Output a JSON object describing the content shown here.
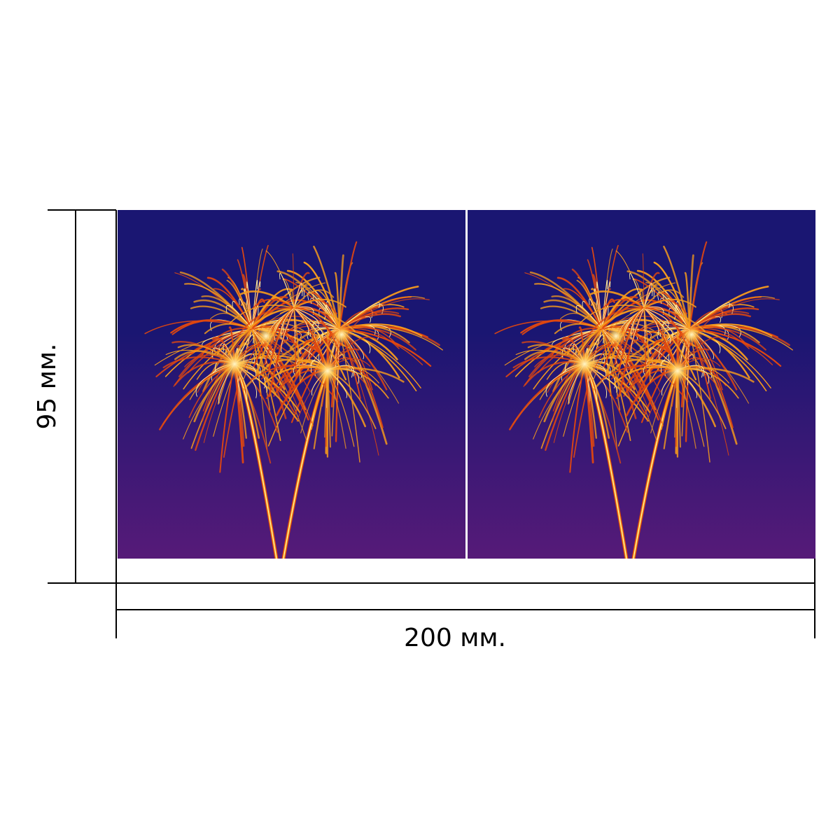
{
  "dimensions": {
    "width_label": "200 мм.",
    "height_label": "95 мм."
  },
  "panels": [
    {
      "name": "left-panel",
      "image": "fireworks-image"
    },
    {
      "name": "right-panel",
      "image": "fireworks-image"
    }
  ],
  "colors": {
    "sky_top": "#1a1672",
    "sky_bottom": "#561a78",
    "spark_outer": "#e0470f",
    "spark_mid": "#f59a1c",
    "spark_core": "#fff2a8",
    "divider": "#ffffff",
    "dimension_line": "#000000"
  }
}
